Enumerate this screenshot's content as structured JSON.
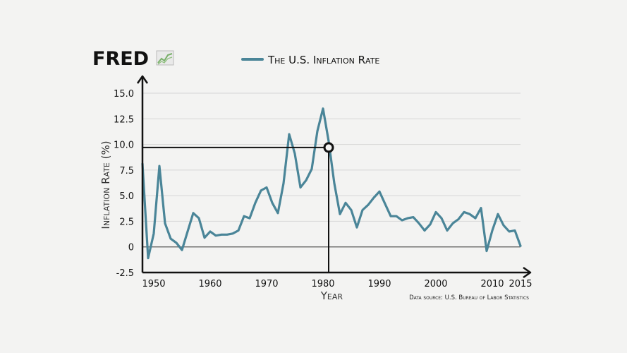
{
  "brand": {
    "name": "FRED",
    "icon": "line-graph-icon"
  },
  "chart_data": {
    "type": "line",
    "title": "",
    "xlabel": "Year",
    "ylabel": "Inflation Rate (%)",
    "xlim": [
      1948,
      2015
    ],
    "ylim": [
      -2.5,
      15.0
    ],
    "x_ticks": [
      1950,
      1960,
      1970,
      1980,
      1990,
      2000,
      2010,
      2015
    ],
    "y_ticks": [
      15.0,
      12.5,
      10.0,
      7.5,
      5.0,
      2.5,
      0,
      -2.5
    ],
    "y_tick_labels": [
      "15.0",
      "12.5",
      "10.0",
      "7.5",
      "5.0",
      "2.5",
      "0",
      "-2.5"
    ],
    "grid": true,
    "legend_position": "top",
    "series": [
      {
        "name": "The U.S. Inflation Rate",
        "color": "#4a8598",
        "x": [
          1948,
          1949,
          1950,
          1951,
          1952,
          1953,
          1954,
          1955,
          1956,
          1957,
          1958,
          1959,
          1960,
          1961,
          1962,
          1963,
          1964,
          1965,
          1966,
          1967,
          1968,
          1969,
          1970,
          1971,
          1972,
          1973,
          1974,
          1975,
          1976,
          1977,
          1978,
          1979,
          1980,
          1981,
          1982,
          1983,
          1984,
          1985,
          1986,
          1987,
          1988,
          1989,
          1990,
          1991,
          1992,
          1993,
          1994,
          1995,
          1996,
          1997,
          1998,
          1999,
          2000,
          2001,
          2002,
          2003,
          2004,
          2005,
          2006,
          2007,
          2008,
          2009,
          2010,
          2011,
          2012,
          2013,
          2014,
          2015
        ],
        "values": [
          8.1,
          -1.1,
          1.3,
          7.9,
          2.3,
          0.8,
          0.4,
          -0.3,
          1.5,
          3.3,
          2.8,
          0.9,
          1.5,
          1.1,
          1.2,
          1.2,
          1.3,
          1.6,
          3.0,
          2.8,
          4.3,
          5.5,
          5.8,
          4.3,
          3.3,
          6.2,
          11.0,
          9.1,
          5.8,
          6.5,
          7.6,
          11.3,
          13.5,
          10.3,
          6.2,
          3.2,
          4.3,
          3.6,
          1.9,
          3.6,
          4.1,
          4.8,
          5.4,
          4.2,
          3.0,
          3.0,
          2.6,
          2.8,
          2.9,
          2.3,
          1.6,
          2.2,
          3.4,
          2.8,
          1.6,
          2.3,
          2.7,
          3.4,
          3.2,
          2.8,
          3.8,
          -0.4,
          1.6,
          3.2,
          2.1,
          1.5,
          1.6,
          0.1
        ]
      }
    ],
    "annotations": [
      {
        "type": "marker",
        "x": 1981,
        "y": 9.7
      }
    ]
  },
  "footer": {
    "source": "Data source: U.S. Bureau of Labor Statistics"
  },
  "colors": {
    "background": "#f3f3f2",
    "axis": "#111111",
    "grid": "#d6d6d6",
    "line": "#4a8598"
  }
}
